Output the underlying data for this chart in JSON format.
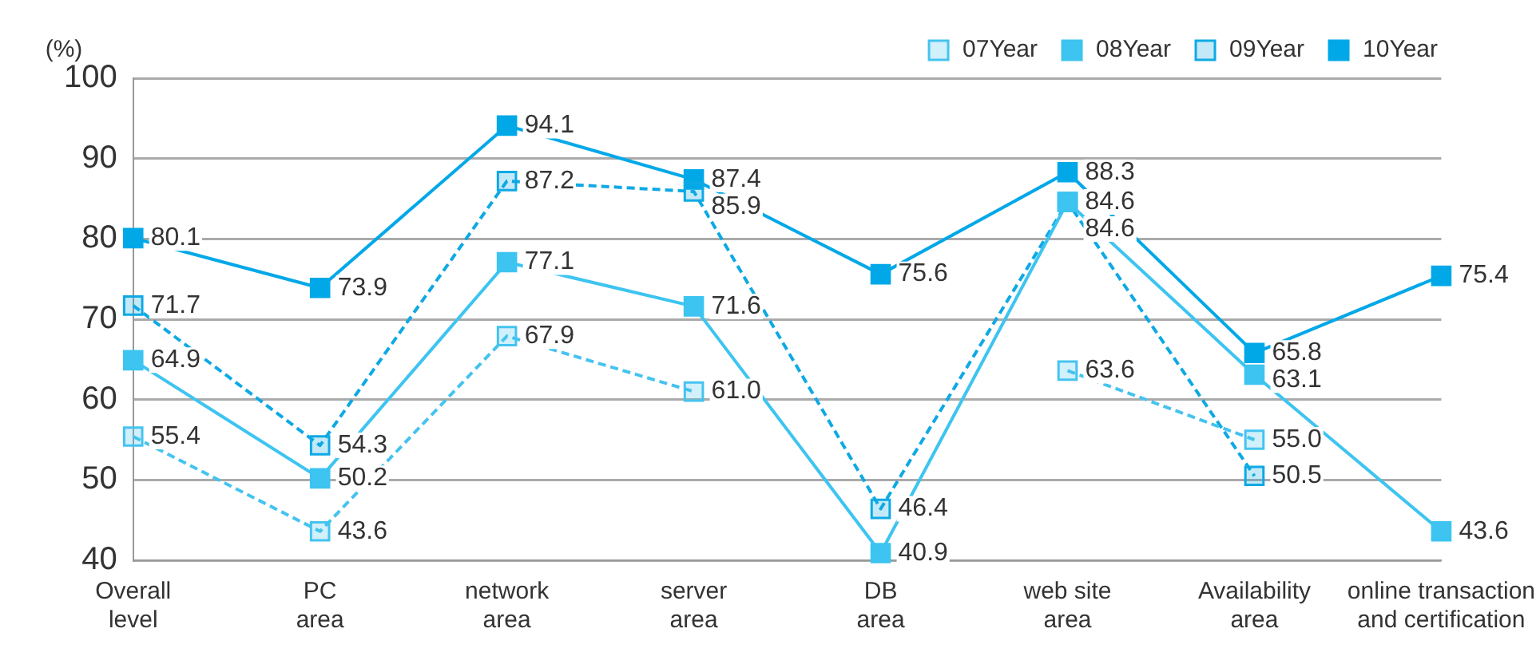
{
  "chart_data": {
    "type": "line",
    "ylabel": "(%)",
    "categories": [
      "Overall\nlevel",
      "PC\narea",
      "network\narea",
      "server\narea",
      "DB\narea",
      "web site\narea",
      "Availability\narea",
      "online transaction\nand certification"
    ],
    "series": [
      {
        "name": "07Year",
        "color": "#45c3ef",
        "line_style": "dashed",
        "values": [
          55.4,
          43.6,
          67.9,
          61.0,
          null,
          63.6,
          55.0,
          null
        ],
        "value_labels": [
          "55.4",
          "43.6",
          "67.9",
          "61.0",
          null,
          "63.6",
          "55.0",
          null
        ]
      },
      {
        "name": "08Year",
        "color": "#3dc4f1",
        "line_style": "solid",
        "values": [
          64.9,
          50.2,
          77.1,
          71.6,
          40.9,
          84.6,
          63.1,
          43.6
        ],
        "value_labels": [
          "64.9",
          "50.2",
          "77.1",
          "71.6",
          "40.9",
          "84.6",
          "63.1",
          "43.6"
        ]
      },
      {
        "name": "09Year",
        "color": "#0ea9e4",
        "line_style": "dashed",
        "values": [
          71.7,
          54.3,
          87.2,
          85.9,
          46.4,
          84.6,
          50.5,
          null
        ],
        "value_labels": [
          "71.7",
          "54.3",
          "87.2",
          "85.9",
          "46.4",
          "84.6",
          "50.5",
          null
        ]
      },
      {
        "name": "10Year",
        "color": "#00a8e8",
        "line_style": "solid",
        "values": [
          80.1,
          73.9,
          94.1,
          87.4,
          75.6,
          88.3,
          65.8,
          75.4
        ],
        "value_labels": [
          "80.1",
          "73.9",
          "94.1",
          "87.4",
          "75.6",
          "88.3",
          "65.8",
          "75.4"
        ]
      }
    ],
    "ylim": [
      40,
      100
    ],
    "yticks": [
      40,
      50,
      60,
      70,
      80,
      90,
      100
    ],
    "grid": "y",
    "legend": "top right",
    "marker": "square"
  }
}
